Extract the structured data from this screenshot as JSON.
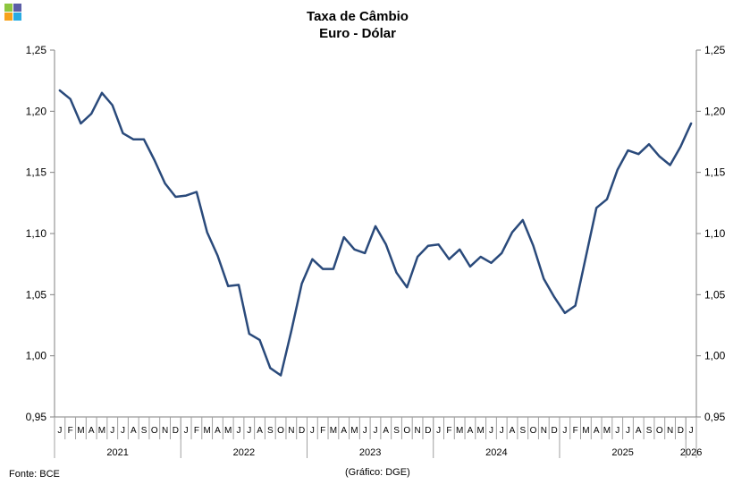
{
  "logo": {
    "colors": [
      "#8dc63f",
      "#5b5ea6",
      "#f7a21b",
      "#29abe2"
    ]
  },
  "chart_data": {
    "type": "line",
    "title": "Taxa de Câmbio",
    "subtitle": "Euro - Dólar",
    "source": "Fonte: BCE",
    "credit": "(Gráfico: DGE)",
    "ylim": [
      0.95,
      1.25
    ],
    "yticks_left": [
      "0,95",
      "1,00",
      "1,05",
      "1,10",
      "1,15",
      "1,20",
      "1,25"
    ],
    "yticks_right": [
      "0,95",
      "1,00",
      "1,05",
      "1,10",
      "1,15",
      "1,20",
      "1,25"
    ],
    "ytick_values": [
      0.95,
      1.0,
      1.05,
      1.1,
      1.15,
      1.2,
      1.25
    ],
    "month_labels": [
      "J",
      "F",
      "M",
      "A",
      "M",
      "J",
      "J",
      "A",
      "S",
      "O",
      "N",
      "D",
      "J",
      "F",
      "M",
      "A",
      "M",
      "J",
      "J",
      "A",
      "S",
      "O",
      "N",
      "D",
      "J",
      "F",
      "M",
      "A",
      "M",
      "J",
      "J",
      "A",
      "S",
      "O",
      "N",
      "D",
      "J",
      "F",
      "M",
      "A",
      "M",
      "J",
      "J",
      "A",
      "S",
      "O",
      "N",
      "D",
      "J",
      "F",
      "M",
      "A",
      "M",
      "J",
      "J",
      "A",
      "S",
      "O",
      "N",
      "D",
      "J"
    ],
    "years": [
      {
        "label": "2021",
        "months": 12
      },
      {
        "label": "2022",
        "months": 12
      },
      {
        "label": "2023",
        "months": 12
      },
      {
        "label": "2024",
        "months": 12
      },
      {
        "label": "2025",
        "months": 12
      },
      {
        "label": "2026",
        "months": 1
      }
    ],
    "grid": false,
    "line_color": "#2a4a7b",
    "series": [
      {
        "values": [
          1.217,
          1.21,
          1.19,
          1.198,
          1.215,
          1.205,
          1.182,
          1.177,
          1.177,
          1.16,
          1.141,
          1.13,
          1.131,
          1.134,
          1.101,
          1.082,
          1.057,
          1.058,
          1.018,
          1.013,
          0.99,
          0.984,
          1.02,
          1.059,
          1.079,
          1.071,
          1.071,
          1.097,
          1.087,
          1.084,
          1.106,
          1.091,
          1.068,
          1.056,
          1.081,
          1.09,
          1.091,
          1.079,
          1.087,
          1.073,
          1.081,
          1.076,
          1.084,
          1.101,
          1.111,
          1.09,
          1.063,
          1.048,
          1.035,
          1.041,
          1.081,
          1.121,
          1.128,
          1.152,
          1.168,
          1.165,
          1.173,
          1.163,
          1.156,
          1.171,
          1.19
        ]
      }
    ]
  }
}
